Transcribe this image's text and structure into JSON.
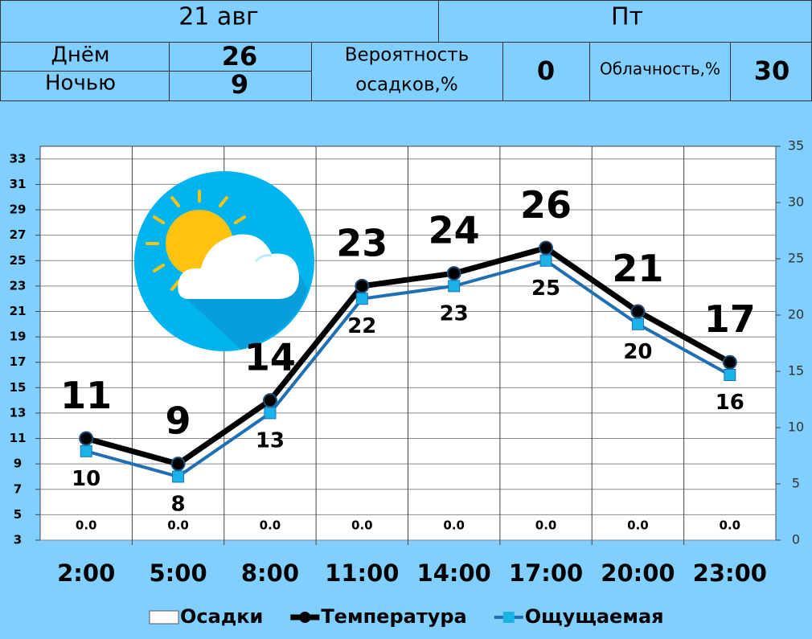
{
  "header": {
    "date": "21 авг",
    "weekday": "Пт",
    "day_label": "Днём",
    "day_temp": 26,
    "night_label": "Ночью",
    "night_temp": 9,
    "precip_label": [
      "Вероятность",
      "осадков,%"
    ],
    "precip_value": 0,
    "cloud_label": "Облачность,%",
    "cloud_value": 30
  },
  "chart_data": {
    "type": "line",
    "categories": [
      "2:00",
      "5:00",
      "8:00",
      "11:00",
      "14:00",
      "17:00",
      "20:00",
      "23:00"
    ],
    "ylim": [
      3,
      34
    ],
    "yticks": [
      3,
      5,
      7,
      9,
      11,
      13,
      15,
      17,
      19,
      21,
      23,
      25,
      27,
      29,
      31,
      33
    ],
    "y2lim": [
      0,
      35
    ],
    "y2ticks": [
      0,
      5,
      10,
      15,
      20,
      25,
      30,
      35
    ],
    "grid": true,
    "series": [
      {
        "name": "Осадки",
        "type": "bar",
        "axis": "y2",
        "color": "#ffffff",
        "values": [
          0,
          0,
          0,
          0,
          0,
          0,
          0,
          0
        ],
        "value_labels": [
          "0.0",
          "0.0",
          "0.0",
          "0.0",
          "0.0",
          "0.0",
          "0.0",
          "0.0"
        ]
      },
      {
        "name": "Температура",
        "color": "#000000",
        "values": [
          11,
          9,
          14,
          23,
          24,
          26,
          21,
          17
        ]
      },
      {
        "name": "Ощущаемая",
        "color": "#1f6fb5",
        "marker_color": "#1ab2e8",
        "values": [
          10,
          8,
          13,
          22,
          23,
          25,
          20,
          16
        ]
      }
    ]
  }
}
